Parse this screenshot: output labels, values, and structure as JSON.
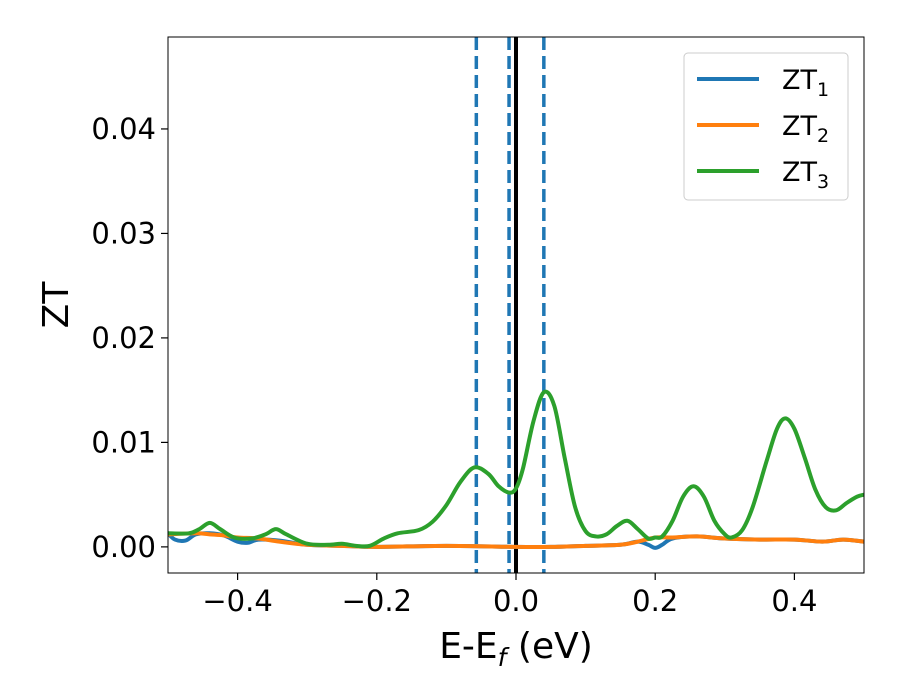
{
  "chart_data": {
    "type": "line",
    "xlabel": "E-E",
    "xlabel_subscript": "f",
    "xlabel_unit": " (eV)",
    "ylabel": "ZT",
    "xlim": [
      -0.5,
      0.5
    ],
    "ylim": [
      -0.0025,
      0.0488
    ],
    "xticks": [
      -0.4,
      -0.2,
      0.0,
      0.2,
      0.4
    ],
    "xtick_labels": [
      "−0.4",
      "−0.2",
      "0.0",
      "0.2",
      "0.4"
    ],
    "yticks": [
      0.0,
      0.01,
      0.02,
      0.03,
      0.04
    ],
    "ytick_labels": [
      "0.00",
      "0.01",
      "0.02",
      "0.03",
      "0.04"
    ],
    "grid": false,
    "legend_position": "top-right",
    "vertical_lines": [
      {
        "x": 0.0,
        "style": "solid",
        "color": "#000000"
      },
      {
        "x": -0.057,
        "style": "dashed",
        "color": "#1f77b4"
      },
      {
        "x": -0.01,
        "style": "dashed",
        "color": "#1f77b4"
      },
      {
        "x": 0.04,
        "style": "dashed",
        "color": "#1f77b4"
      }
    ],
    "series": [
      {
        "name": "ZT",
        "subscript": "1",
        "color": "#1f77b4",
        "points": [
          [
            -0.5,
            0.0013
          ],
          [
            -0.49,
            0.0007
          ],
          [
            -0.475,
            0.0006
          ],
          [
            -0.46,
            0.0012
          ],
          [
            -0.44,
            0.0013
          ],
          [
            -0.42,
            0.0011
          ],
          [
            -0.4,
            0.0005
          ],
          [
            -0.385,
            0.0004
          ],
          [
            -0.37,
            0.0007
          ],
          [
            -0.34,
            0.0006
          ],
          [
            -0.3,
            0.0002
          ],
          [
            -0.25,
            0.0001
          ],
          [
            -0.2,
            0.0
          ],
          [
            -0.1,
            0.0001
          ],
          [
            0.0,
            0.0
          ],
          [
            0.05,
            0.0
          ],
          [
            0.1,
            0.0001
          ],
          [
            0.15,
            0.0002
          ],
          [
            0.175,
            0.0005
          ],
          [
            0.19,
            0.0002
          ],
          [
            0.2,
            -0.0001
          ],
          [
            0.21,
            0.0002
          ],
          [
            0.225,
            0.0008
          ],
          [
            0.26,
            0.001
          ],
          [
            0.3,
            0.0008
          ],
          [
            0.35,
            0.0007
          ],
          [
            0.4,
            0.0007
          ],
          [
            0.44,
            0.0005
          ],
          [
            0.47,
            0.0007
          ],
          [
            0.5,
            0.0005
          ]
        ]
      },
      {
        "name": "ZT",
        "subscript": "2",
        "color": "#ff7f0e",
        "points": [
          [
            -0.5,
            0.0012
          ],
          [
            -0.46,
            0.0013
          ],
          [
            -0.44,
            0.0012
          ],
          [
            -0.42,
            0.0011
          ],
          [
            -0.4,
            0.0009
          ],
          [
            -0.37,
            0.0008
          ],
          [
            -0.34,
            0.0005
          ],
          [
            -0.3,
            0.0002
          ],
          [
            -0.25,
            0.0001
          ],
          [
            -0.2,
            0.0
          ],
          [
            -0.1,
            0.0001
          ],
          [
            0.0,
            0.0
          ],
          [
            0.05,
            0.0
          ],
          [
            0.1,
            0.0001
          ],
          [
            0.15,
            0.0002
          ],
          [
            0.175,
            0.0005
          ],
          [
            0.2,
            0.0009
          ],
          [
            0.225,
            0.0009
          ],
          [
            0.26,
            0.001
          ],
          [
            0.3,
            0.0008
          ],
          [
            0.35,
            0.0007
          ],
          [
            0.4,
            0.0007
          ],
          [
            0.44,
            0.0005
          ],
          [
            0.47,
            0.0007
          ],
          [
            0.5,
            0.0005
          ]
        ]
      },
      {
        "name": "ZT",
        "subscript": "3",
        "color": "#2ca02c",
        "points": [
          [
            -0.5,
            0.0013
          ],
          [
            -0.47,
            0.0013
          ],
          [
            -0.455,
            0.0017
          ],
          [
            -0.44,
            0.0023
          ],
          [
            -0.425,
            0.0017
          ],
          [
            -0.405,
            0.0009
          ],
          [
            -0.38,
            0.0008
          ],
          [
            -0.36,
            0.0012
          ],
          [
            -0.345,
            0.0017
          ],
          [
            -0.33,
            0.0012
          ],
          [
            -0.3,
            0.0003
          ],
          [
            -0.27,
            0.0002
          ],
          [
            -0.25,
            0.0003
          ],
          [
            -0.23,
            0.0001
          ],
          [
            -0.21,
            0.0001
          ],
          [
            -0.19,
            0.0008
          ],
          [
            -0.17,
            0.0013
          ],
          [
            -0.14,
            0.0016
          ],
          [
            -0.12,
            0.0024
          ],
          [
            -0.1,
            0.004
          ],
          [
            -0.08,
            0.0062
          ],
          [
            -0.06,
            0.0076
          ],
          [
            -0.04,
            0.007
          ],
          [
            -0.025,
            0.0058
          ],
          [
            -0.01,
            0.0052
          ],
          [
            0.0,
            0.0056
          ],
          [
            0.01,
            0.0075
          ],
          [
            0.025,
            0.012
          ],
          [
            0.04,
            0.0148
          ],
          [
            0.055,
            0.0135
          ],
          [
            0.07,
            0.0085
          ],
          [
            0.085,
            0.0038
          ],
          [
            0.1,
            0.0015
          ],
          [
            0.115,
            0.001
          ],
          [
            0.13,
            0.0012
          ],
          [
            0.145,
            0.002
          ],
          [
            0.16,
            0.0025
          ],
          [
            0.175,
            0.0017
          ],
          [
            0.19,
            0.0008
          ],
          [
            0.2,
            0.0009
          ],
          [
            0.21,
            0.001
          ],
          [
            0.225,
            0.0025
          ],
          [
            0.24,
            0.0048
          ],
          [
            0.255,
            0.0058
          ],
          [
            0.27,
            0.0048
          ],
          [
            0.285,
            0.0025
          ],
          [
            0.3,
            0.0012
          ],
          [
            0.31,
            0.0009
          ],
          [
            0.325,
            0.0016
          ],
          [
            0.34,
            0.0038
          ],
          [
            0.36,
            0.0082
          ],
          [
            0.375,
            0.0113
          ],
          [
            0.387,
            0.0123
          ],
          [
            0.4,
            0.0113
          ],
          [
            0.415,
            0.0085
          ],
          [
            0.43,
            0.0055
          ],
          [
            0.445,
            0.0038
          ],
          [
            0.46,
            0.0035
          ],
          [
            0.475,
            0.0042
          ],
          [
            0.49,
            0.0048
          ],
          [
            0.5,
            0.005
          ]
        ]
      }
    ]
  }
}
